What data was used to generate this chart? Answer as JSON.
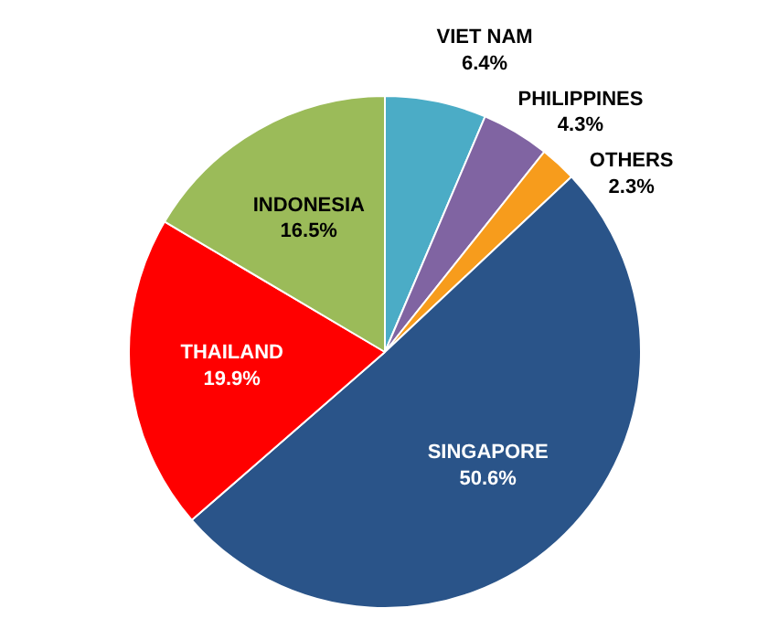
{
  "chart_data": {
    "type": "pie",
    "categories": [
      "VIET NAM",
      "PHILIPPINES",
      "OTHERS",
      "SINGAPORE",
      "THAILAND",
      "INDONESIA"
    ],
    "values": [
      6.4,
      4.3,
      2.3,
      50.6,
      19.9,
      16.5
    ],
    "value_labels": [
      "6.4%",
      "4.3%",
      "2.3%",
      "50.6%",
      "19.9%",
      "16.5%"
    ],
    "colors": [
      "#4bacc6",
      "#8064a2",
      "#f79c1c",
      "#2a5489",
      "#ff0000",
      "#9bbb59"
    ],
    "legend": false
  }
}
